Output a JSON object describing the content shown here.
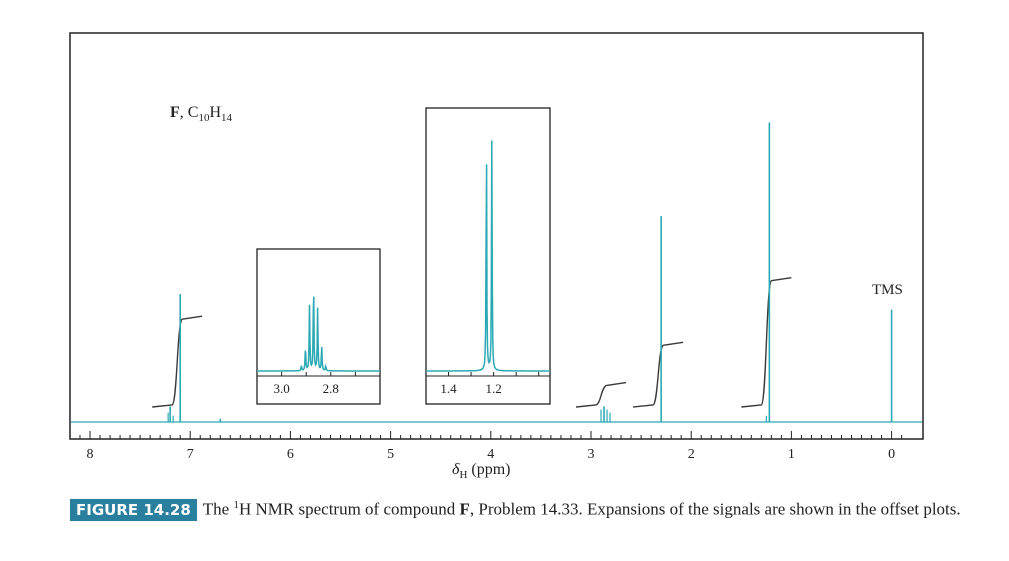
{
  "chart_data": {
    "type": "line",
    "title": "F, C10H14",
    "compound": {
      "label": "F",
      "formula_prefix": "C",
      "c_count": "10",
      "h_letter": "H",
      "h_count": "14"
    },
    "xlabel_symbol": "δ",
    "xlabel_sub": "H",
    "xlabel_unit": "(ppm)",
    "xlim": [
      8.0,
      -0.2
    ],
    "x_ticks": [
      "8",
      "7",
      "6",
      "5",
      "4",
      "3",
      "2",
      "1",
      "0"
    ],
    "tms_label": "TMS",
    "peaks": [
      {
        "shift": 7.2,
        "rel_height": 0.05
      },
      {
        "shift": 7.1,
        "rel_height": 0.41
      },
      {
        "shift": 6.7,
        "rel_height": 0.01
      },
      {
        "shift": 2.87,
        "rel_height": 0.05
      },
      {
        "shift": 2.3,
        "rel_height": 0.66
      },
      {
        "shift": 1.22,
        "rel_height": 0.96
      },
      {
        "shift": 0.0,
        "rel_height": 0.36
      }
    ],
    "integrals": [
      {
        "shift": 7.1,
        "step": 0.52
      },
      {
        "shift": 2.87,
        "step": 0.14
      },
      {
        "shift": 2.3,
        "step": 0.37
      },
      {
        "shift": 1.22,
        "step": 0.74
      }
    ],
    "insets": [
      {
        "range": [
          3.1,
          2.6
        ],
        "tick_labels": [
          "3.0",
          "2.8"
        ],
        "tick_values": [
          3.0,
          2.8
        ],
        "pattern": "septet",
        "center": 2.87
      },
      {
        "range": [
          1.5,
          0.95
        ],
        "tick_labels": [
          "1.4",
          "1.2"
        ],
        "tick_values": [
          1.4,
          1.2
        ],
        "pattern": "doublet",
        "center": 1.22
      }
    ]
  },
  "caption": {
    "figure_label": "FIGURE 14.28",
    "text_1": "The ",
    "superscript": "1",
    "text_2": "H NMR spectrum of compound ",
    "compound": "F",
    "text_3": ", Problem 14.33. Expansions of the signals are shown in the offset plots."
  },
  "colors": {
    "spectrum": "#2aa9b4",
    "integral": "#3a3a3a",
    "frame": "#222222",
    "badge": "#2a7f9e"
  }
}
